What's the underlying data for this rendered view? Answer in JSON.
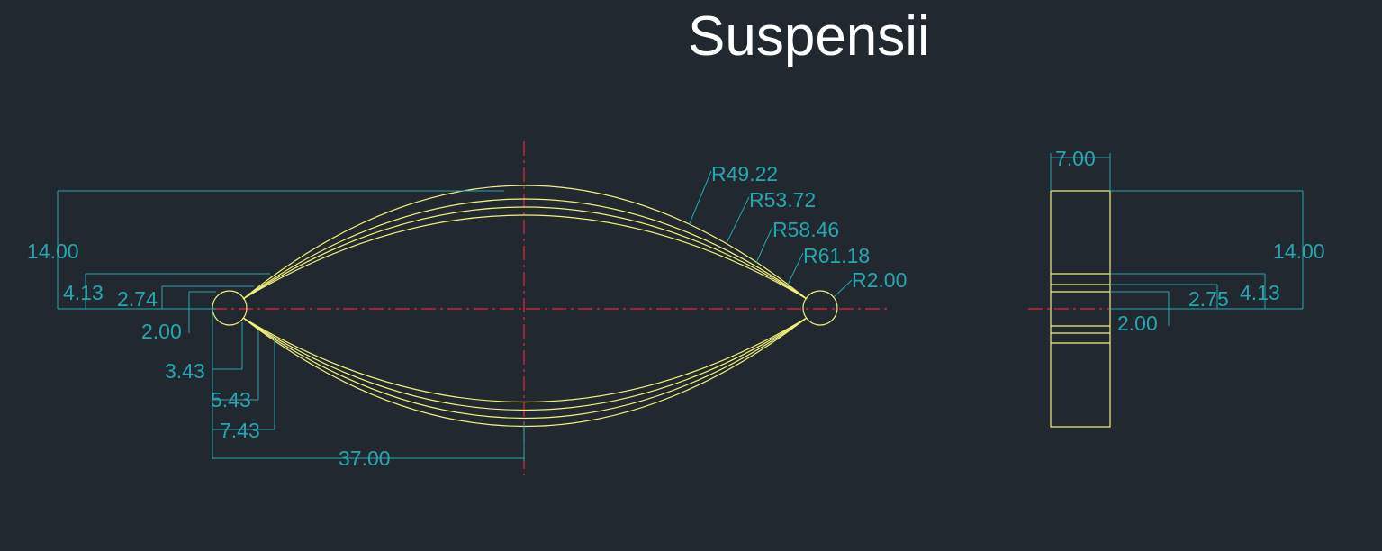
{
  "title": "Suspensii",
  "colors": {
    "background": "#212830",
    "geometry": "#f2f07a",
    "dimension": "#26a6b0",
    "centerline": "#e0283a",
    "title": "#ffffff"
  },
  "front_view": {
    "radius_labels": [
      "R49.22",
      "R53.72",
      "R58.46",
      "R61.18",
      "R2.00"
    ],
    "overall_height": "14.00",
    "offsets_top": [
      "4.13",
      "2.74"
    ],
    "pin_radius_offset": "2.00",
    "offsets_bottom": [
      "3.43",
      "5.43",
      "7.43"
    ],
    "half_length": "37.00"
  },
  "side_view": {
    "width": "7.00",
    "overall_height": "14.00",
    "offsets": [
      "4.13",
      "2.75",
      "2.00"
    ]
  }
}
